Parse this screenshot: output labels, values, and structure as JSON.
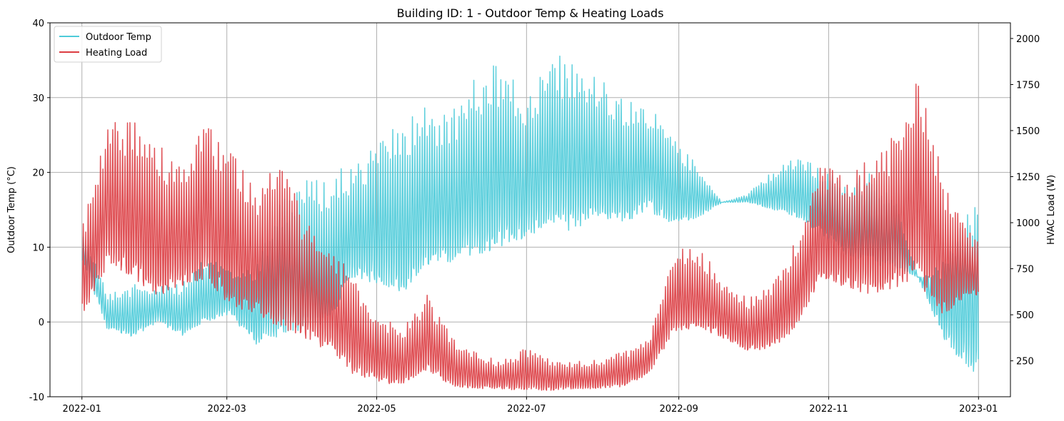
{
  "chart_data": {
    "type": "line",
    "title": "Building ID: 1 - Outdoor Temp & Heating Loads",
    "ylabel_left": "Outdoor Temp (°C)",
    "ylabel_right": "HVAC Load (W)",
    "xlim": [
      "2021-12-19",
      "2023-01-14"
    ],
    "ylim_left": [
      -10,
      40
    ],
    "ylim_right": [
      55,
      2085
    ],
    "x_ticks": [
      "2022-01",
      "2022-03",
      "2022-05",
      "2022-07",
      "2022-09",
      "2022-11",
      "2023-01"
    ],
    "y_ticks_left": [
      -10,
      0,
      10,
      20,
      30,
      40
    ],
    "y_ticks_right": [
      250,
      500,
      750,
      1000,
      1250,
      1500,
      1750,
      2000
    ],
    "grid": true,
    "legend_placement": "top-left",
    "series": [
      {
        "name": "Outdoor Temp",
        "axis": "left",
        "color": "#4ecbd9",
        "sampling": "daily min/max envelope, 2022-01-01 .. 2022-12-31",
        "daily_min_every_10_days": [
          8,
          -1,
          -2,
          0,
          -2,
          0,
          1,
          -3,
          -2,
          -1,
          0,
          6,
          5,
          4,
          7,
          8,
          9,
          10,
          11,
          13,
          12,
          14,
          13,
          15,
          13,
          14,
          16,
          16,
          15,
          14,
          12,
          9,
          8,
          7,
          6,
          -2,
          -7
        ],
        "daily_max_every_10_days": [
          12,
          4,
          5,
          5,
          5,
          9,
          7,
          8,
          17,
          19,
          20,
          21,
          24,
          27,
          29,
          28,
          33,
          35,
          30,
          36,
          35,
          33,
          30,
          29,
          25,
          21,
          16,
          17,
          20,
          22,
          21,
          19,
          20,
          17,
          6,
          8,
          16
        ]
      },
      {
        "name": "Heating Load",
        "axis": "right",
        "color": "#dc3d42",
        "sampling": "daily min/max envelope, 2022-01-01 .. 2022-12-31",
        "daily_min_every_10_days": [
          500,
          780,
          700,
          600,
          650,
          700,
          550,
          500,
          420,
          380,
          300,
          180,
          130,
          120,
          200,
          110,
          100,
          95,
          90,
          90,
          95,
          100,
          110,
          180,
          400,
          420,
          380,
          300,
          320,
          420,
          700,
          650,
          600,
          650,
          680,
          500,
          600
        ],
        "daily_max_every_10_days": [
          1000,
          1560,
          1560,
          1420,
          1350,
          1530,
          1420,
          1200,
          1350,
          1050,
          900,
          700,
          500,
          420,
          620,
          380,
          300,
          250,
          320,
          260,
          250,
          260,
          300,
          360,
          850,
          880,
          700,
          600,
          650,
          900,
          1350,
          1250,
          1350,
          1480,
          1800,
          1250,
          950
        ]
      }
    ]
  }
}
